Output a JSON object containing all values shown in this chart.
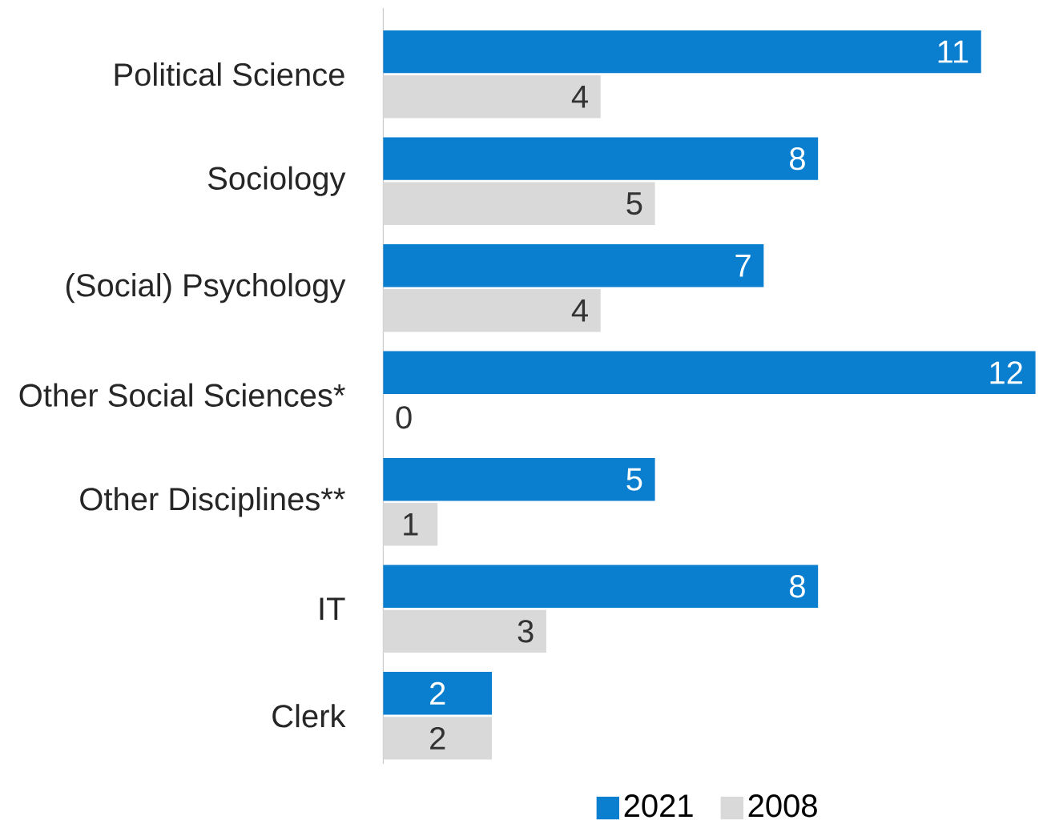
{
  "chart_data": {
    "type": "bar",
    "orientation": "horizontal",
    "categories": [
      "Political Science",
      "Sociology",
      "(Social) Psychology",
      "Other Social Sciences*",
      "Other Disciplines**",
      "IT",
      "Clerk"
    ],
    "series": [
      {
        "name": "2021",
        "color": "#0a7fcf",
        "values": [
          11,
          8,
          7,
          12,
          5,
          8,
          2
        ]
      },
      {
        "name": "2008",
        "color": "#d9d9d9",
        "values": [
          4,
          5,
          4,
          0,
          1,
          3,
          2
        ]
      }
    ],
    "data_labels": true,
    "legend": "bottom"
  }
}
